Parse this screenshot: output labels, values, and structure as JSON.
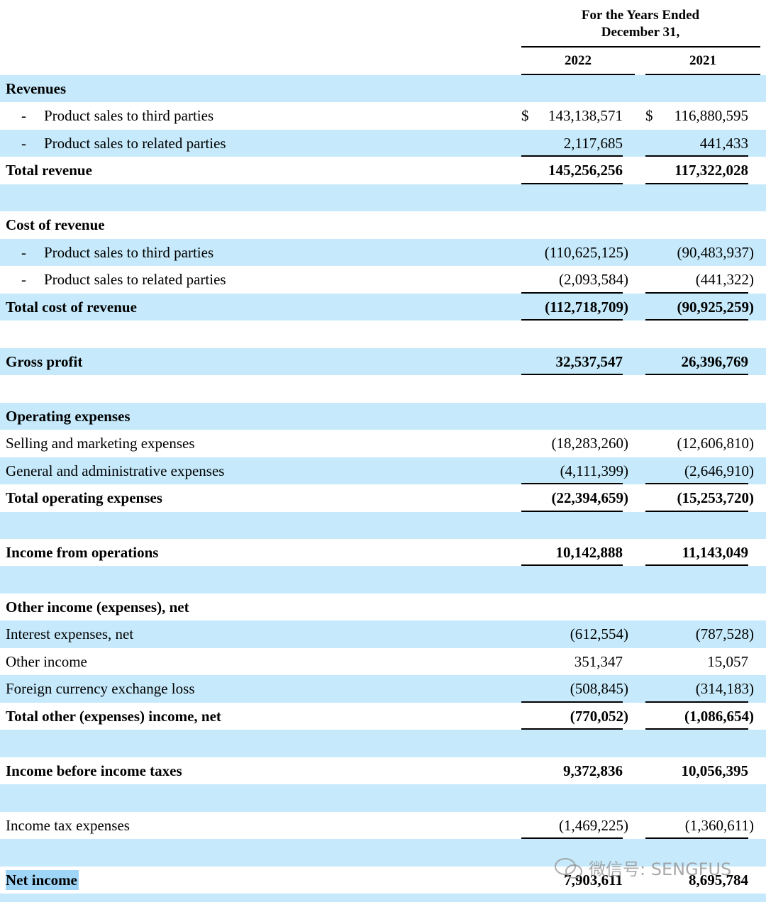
{
  "header": {
    "caption_line1": "For the Years Ended",
    "caption_line2": "December 31,",
    "years": [
      "2022",
      "2021"
    ]
  },
  "currency": "$",
  "table": {
    "rows": [
      {
        "label": "Revenues",
        "bold": true
      },
      {
        "bullet": "-",
        "label": "Product sales to third parties",
        "values": [
          "143,138,571",
          "116,880,595"
        ],
        "currency_shown": true
      },
      {
        "bullet": "-",
        "label": "Product sales to related parties",
        "values": [
          "2,117,685",
          "441,433"
        ],
        "underline": true
      },
      {
        "label": "Total revenue",
        "bold": true,
        "values": [
          "145,256,256",
          "117,322,028"
        ],
        "underline": true
      },
      {
        "label": "Cost of revenue",
        "bold": true
      },
      {
        "bullet": "-",
        "label": "Product sales to third parties",
        "values": [
          "(110,625,125)",
          "(90,483,937)"
        ]
      },
      {
        "bullet": "-",
        "label": "Product sales to related parties",
        "values": [
          "(2,093,584)",
          "(441,322)"
        ],
        "underline": true
      },
      {
        "label": "Total cost of revenue",
        "bold": true,
        "values": [
          "(112,718,709)",
          "(90,925,259)"
        ],
        "underline": true
      },
      {
        "label": "Gross profit",
        "bold": true,
        "values": [
          "32,537,547",
          "26,396,769"
        ],
        "underline": true
      },
      {
        "label": "Operating expenses",
        "bold": true
      },
      {
        "label": "Selling and marketing expenses",
        "values": [
          "(18,283,260)",
          "(12,606,810)"
        ]
      },
      {
        "label": "General and administrative expenses",
        "values": [
          "(4,111,399)",
          "(2,646,910)"
        ],
        "underline": true
      },
      {
        "label": "Total operating expenses",
        "bold": true,
        "values": [
          "(22,394,659)",
          "(15,253,720)"
        ],
        "underline": true
      },
      {
        "label": "Income from operations",
        "bold": true,
        "values": [
          "10,142,888",
          "11,143,049"
        ],
        "underline": true
      },
      {
        "label": "Other income (expenses), net",
        "bold": true
      },
      {
        "label": "Interest expenses, net",
        "values": [
          "(612,554)",
          "(787,528)"
        ]
      },
      {
        "label": "Other income",
        "values": [
          "351,347",
          "15,057"
        ]
      },
      {
        "label": "Foreign currency exchange loss",
        "values": [
          "(508,845)",
          "(314,183)"
        ],
        "underline": true
      },
      {
        "label": "Total other (expenses) income, net",
        "bold": true,
        "values": [
          "(770,052)",
          "(1,086,654)"
        ],
        "underline": true
      },
      {
        "label": "Income before income taxes",
        "bold": true,
        "values": [
          "9,372,836",
          "10,056,395"
        ]
      },
      {
        "label": "Income tax expenses",
        "values": [
          "(1,469,225)",
          "(1,360,611)"
        ],
        "underline": true
      },
      {
        "label": "Net income",
        "bold": true,
        "values": [
          "7,903,611",
          "8,695,784"
        ],
        "highlight": true
      }
    ]
  },
  "watermark": "微信号: SENGFUS"
}
